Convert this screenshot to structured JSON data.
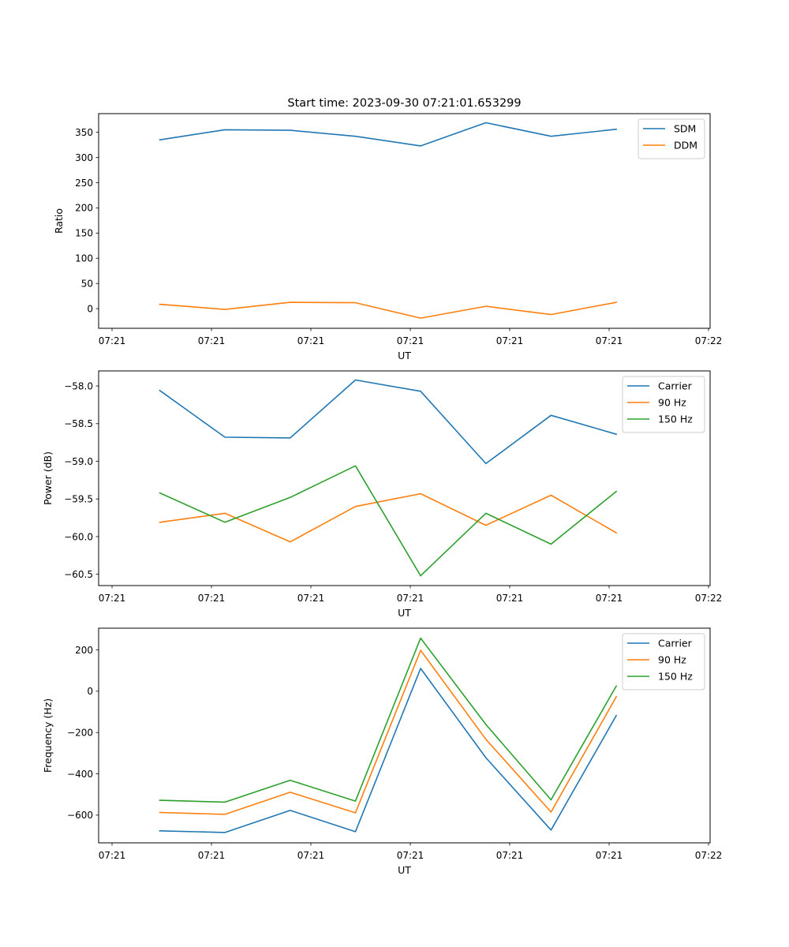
{
  "chart_data": [
    {
      "type": "line",
      "title": "Start time: 2023-09-30 07:21:01.653299",
      "xlabel": "UT",
      "ylabel": "Ratio",
      "x_tick_labels": [
        "07:21",
        "07:21",
        "07:21",
        "07:21",
        "07:21",
        "07:21",
        "07:22"
      ],
      "x_index": [
        0,
        1,
        2,
        3,
        4,
        5,
        6,
        7
      ],
      "y_ticks": [
        0,
        50,
        100,
        150,
        200,
        250,
        300,
        350
      ],
      "y_tick_labels": [
        "0",
        "50",
        "100",
        "150",
        "200",
        "250",
        "300",
        "350"
      ],
      "ylim": [
        -39,
        387
      ],
      "legend_position": "top-right",
      "grid": false,
      "series": [
        {
          "name": "SDM",
          "color": "#1f77b4",
          "values": [
            335,
            355,
            354,
            342,
            323,
            369,
            342,
            356
          ]
        },
        {
          "name": "DDM",
          "color": "#ff7f0e",
          "values": [
            8.6,
            -1.6,
            12.5,
            11.8,
            -18.8,
            4.7,
            -11.8,
            12.5
          ]
        }
      ]
    },
    {
      "type": "line",
      "title": "",
      "xlabel": "UT",
      "ylabel": "Power (dB)",
      "x_tick_labels": [
        "07:21",
        "07:21",
        "07:21",
        "07:21",
        "07:21",
        "07:21",
        "07:22"
      ],
      "x_index": [
        0,
        1,
        2,
        3,
        4,
        5,
        6,
        7
      ],
      "y_ticks": [
        -60.5,
        -60.0,
        -59.5,
        -59.0,
        -58.5,
        -58.0
      ],
      "y_tick_labels": [
        "−60.5",
        "−60.0",
        "−59.5",
        "−59.0",
        "−58.5",
        "−58.0"
      ],
      "ylim": [
        -60.65,
        -57.8
      ],
      "legend_position": "top-right",
      "grid": false,
      "series": [
        {
          "name": "Carrier",
          "color": "#1f77b4",
          "values": [
            -58.06,
            -58.68,
            -58.69,
            -57.92,
            -58.07,
            -59.03,
            -58.39,
            -58.64
          ]
        },
        {
          "name": "90 Hz",
          "color": "#ff7f0e",
          "values": [
            -59.81,
            -59.69,
            -60.07,
            -59.6,
            -59.43,
            -59.85,
            -59.45,
            -59.95
          ]
        },
        {
          "name": "150 Hz",
          "color": "#2ca02c",
          "values": [
            -59.42,
            -59.81,
            -59.48,
            -59.06,
            -60.52,
            -59.69,
            -60.1,
            -59.4
          ]
        }
      ]
    },
    {
      "type": "line",
      "title": "",
      "xlabel": "UT",
      "ylabel": "Frequency (Hz)",
      "x_tick_labels": [
        "07:21",
        "07:21",
        "07:21",
        "07:21",
        "07:21",
        "07:21",
        "07:22"
      ],
      "x_index": [
        0,
        1,
        2,
        3,
        4,
        5,
        6,
        7
      ],
      "y_ticks": [
        -600,
        -400,
        -200,
        0,
        200
      ],
      "y_tick_labels": [
        "−600",
        "−400",
        "−200",
        "0",
        "200"
      ],
      "ylim": [
        -734,
        305
      ],
      "legend_position": "top-right",
      "grid": false,
      "series": [
        {
          "name": "Carrier",
          "color": "#1f77b4",
          "values": [
            -676,
            -684,
            -577,
            -680,
            110,
            -322,
            -672,
            -118
          ]
        },
        {
          "name": "90 Hz",
          "color": "#ff7f0e",
          "values": [
            -587,
            -596,
            -489,
            -589,
            198,
            -233,
            -585,
            -27
          ]
        },
        {
          "name": "150 Hz",
          "color": "#2ca02c",
          "values": [
            -528,
            -537,
            -431,
            -532,
            257,
            -161,
            -526,
            25
          ]
        }
      ]
    }
  ]
}
